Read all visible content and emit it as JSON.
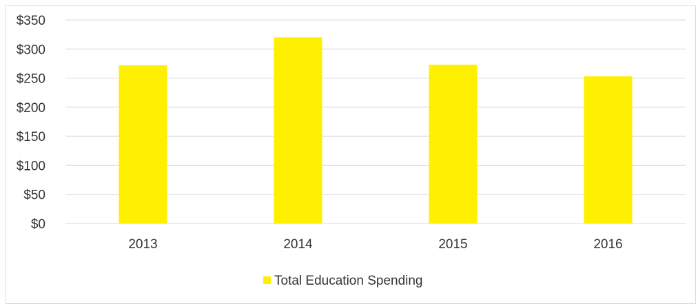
{
  "chart_data": {
    "type": "bar",
    "categories": [
      "2013",
      "2014",
      "2015",
      "2016"
    ],
    "series": [
      {
        "name": "Total Education Spending",
        "values": [
          272,
          320,
          273,
          253
        ],
        "color": "#ffef00"
      }
    ],
    "ylim": [
      0,
      350
    ],
    "y_ticks": [
      0,
      50,
      100,
      150,
      200,
      250,
      300,
      350
    ],
    "y_tick_labels": [
      "$0",
      "$50",
      "$100",
      "$150",
      "$200",
      "$250",
      "$300",
      "$350"
    ],
    "grid": true,
    "gridline_color": "#d9d9d9",
    "legend_position": "bottom"
  }
}
